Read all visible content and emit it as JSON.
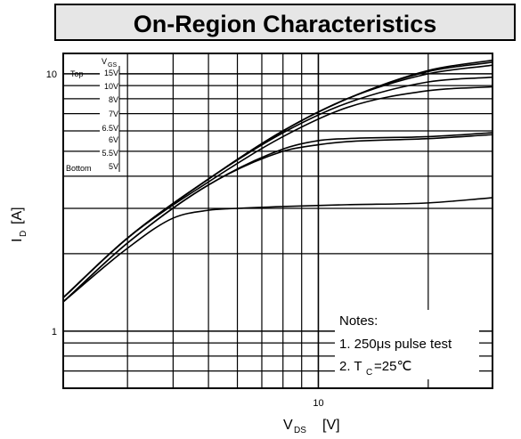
{
  "chart_data": {
    "type": "line",
    "title": "On-Region Characteristics",
    "xlabel_main": "V",
    "xlabel_sub": "DS",
    "xlabel_unit": "[V]",
    "ylabel_main": "I",
    "ylabel_sub": "D",
    "ylabel_unit": "[A]",
    "x_scale": "log",
    "y_scale": "log",
    "xlim": [
      2,
      30
    ],
    "ylim": [
      0.6,
      12
    ],
    "grid": true,
    "x_tick_labels": [
      {
        "value": 10,
        "label": "10"
      }
    ],
    "y_tick_labels": [
      {
        "value": 1,
        "label": "1"
      },
      {
        "value": 10,
        "label": "10"
      }
    ],
    "legend": {
      "placement": "top-left",
      "header_main": "V",
      "header_sub": "GS",
      "top_label": "Top",
      "bottom_label": "Bottom",
      "entries": [
        "15V",
        "10V",
        "8V",
        "7V",
        "6.5V",
        "6V",
        "5.5V",
        "5V"
      ]
    },
    "notes": {
      "title": "Notes:",
      "line1": "1. 250μs pulse test",
      "line2_pre": "2. T",
      "line2_sub": "C",
      "line2_post": "=25℃"
    },
    "series": [
      {
        "name": "15V",
        "x": [
          2,
          3,
          5,
          8,
          12,
          20,
          30
        ],
        "y": [
          1.35,
          2.3,
          3.9,
          6.0,
          8.0,
          10.3,
          11.3
        ]
      },
      {
        "name": "10V",
        "x": [
          2,
          3,
          5,
          8,
          12,
          20,
          30
        ],
        "y": [
          1.35,
          2.3,
          3.9,
          6.0,
          8.0,
          10.2,
          11.1
        ]
      },
      {
        "name": "8V",
        "x": [
          2,
          3,
          5,
          8,
          12,
          20,
          30
        ],
        "y": [
          1.35,
          2.3,
          3.9,
          6.0,
          8.0,
          10.0,
          10.8
        ]
      },
      {
        "name": "7V",
        "x": [
          2,
          3,
          5,
          8,
          12,
          20,
          30
        ],
        "y": [
          1.35,
          2.3,
          3.9,
          5.9,
          7.7,
          9.3,
          9.7
        ]
      },
      {
        "name": "6.5V",
        "x": [
          2,
          3,
          5,
          8,
          12,
          20,
          30
        ],
        "y": [
          1.35,
          2.3,
          3.8,
          5.7,
          7.4,
          8.6,
          8.9
        ]
      },
      {
        "name": "6V",
        "x": [
          2,
          3,
          5,
          8,
          10,
          12,
          20,
          30
        ],
        "y": [
          1.3,
          2.2,
          3.7,
          5.1,
          5.5,
          5.6,
          5.7,
          5.9
        ]
      },
      {
        "name": "5.5V",
        "x": [
          2,
          3,
          5,
          8,
          10,
          12,
          20,
          30
        ],
        "y": [
          1.3,
          2.2,
          3.7,
          5.0,
          5.3,
          5.45,
          5.6,
          5.8
        ]
      },
      {
        "name": "5V",
        "x": [
          2,
          3,
          4,
          5,
          6,
          8,
          12,
          20,
          30
        ],
        "y": [
          1.3,
          2.1,
          2.75,
          2.95,
          3.0,
          3.05,
          3.1,
          3.15,
          3.3
        ]
      }
    ]
  }
}
